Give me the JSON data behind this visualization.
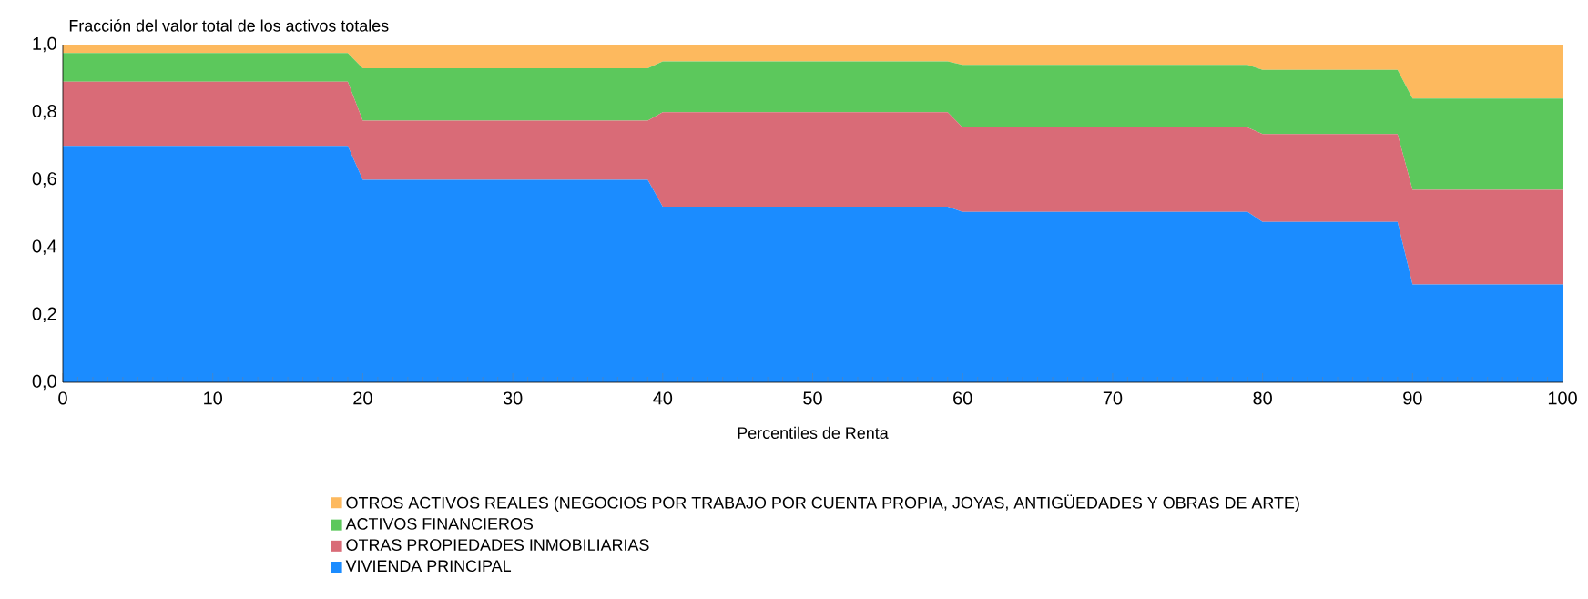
{
  "chart_data": {
    "type": "area",
    "stacked": true,
    "ylabel": "Fracción del valor total de los activos totales",
    "xlabel": "Percentiles de Renta",
    "x": [
      0,
      19,
      20,
      39,
      40,
      59,
      60,
      79,
      80,
      89,
      90,
      100
    ],
    "series": [
      {
        "name": "VIVIENDA PRINCIPAL",
        "color": "#1b8cff",
        "values": [
          0.7,
          0.7,
          0.6,
          0.6,
          0.52,
          0.52,
          0.505,
          0.505,
          0.475,
          0.475,
          0.29,
          0.29
        ]
      },
      {
        "name": "OTRAS PROPIEDADES INMOBILIARIAS",
        "color": "#d96b77",
        "values": [
          0.19,
          0.19,
          0.175,
          0.175,
          0.28,
          0.28,
          0.25,
          0.25,
          0.26,
          0.26,
          0.28,
          0.28
        ]
      },
      {
        "name": "ACTIVOS FINANCIEROS",
        "color": "#5cc85c",
        "values": [
          0.085,
          0.085,
          0.155,
          0.155,
          0.15,
          0.15,
          0.185,
          0.185,
          0.19,
          0.19,
          0.27,
          0.27
        ]
      },
      {
        "name": "OTROS ACTIVOS REALES (NEGOCIOS POR TRABAJO POR CUENTA PROPIA, JOYAS, ANTIGÜEDADES Y OBRAS DE ARTE)",
        "color": "#fdb95e",
        "values": [
          0.025,
          0.025,
          0.07,
          0.07,
          0.05,
          0.05,
          0.06,
          0.06,
          0.075,
          0.075,
          0.16,
          0.16
        ]
      }
    ],
    "xlim": [
      0,
      100
    ],
    "xticks": [
      0,
      10,
      20,
      30,
      40,
      50,
      60,
      70,
      80,
      90,
      100
    ],
    "ylim": [
      0,
      1
    ],
    "yticks": [
      {
        "value": 0,
        "label": "0,0"
      },
      {
        "value": 0.2,
        "label": "0,2"
      },
      {
        "value": 0.4,
        "label": "0,4"
      },
      {
        "value": 0.6,
        "label": "0,6"
      },
      {
        "value": 0.8,
        "label": "0,8"
      },
      {
        "value": 1,
        "label": "1,0"
      }
    ],
    "legend": "bottom"
  }
}
